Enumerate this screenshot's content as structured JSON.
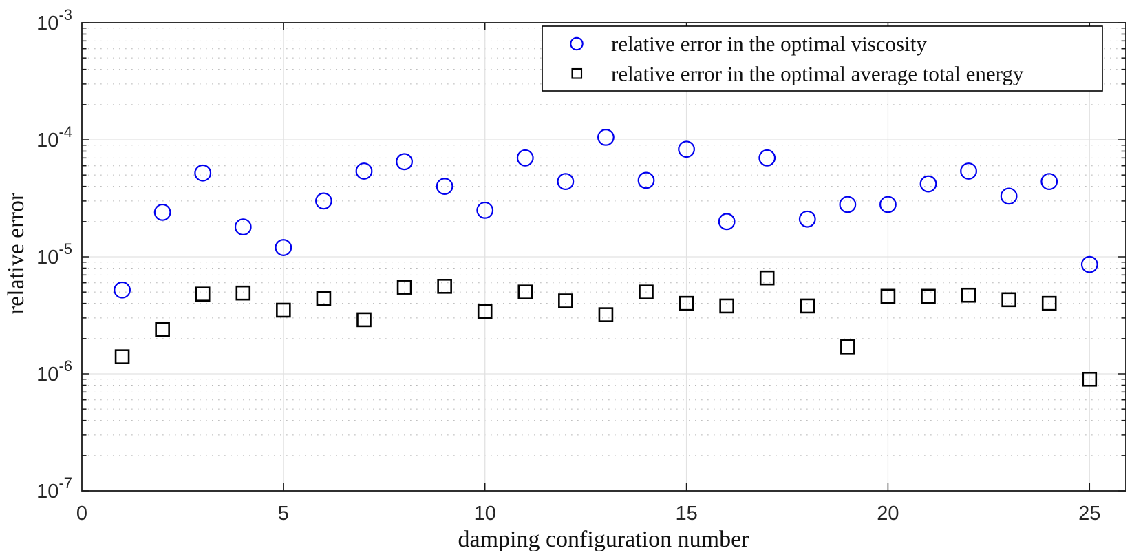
{
  "chart_data": {
    "type": "scatter",
    "title": "",
    "xlabel": "damping configuration number",
    "ylabel": "relative error",
    "yscale": "log",
    "xlim": [
      0,
      25.9
    ],
    "ylim": [
      1e-07,
      0.001
    ],
    "grid": "major solid on, log minor dotted on",
    "legend_position": "top-right inside, boxed",
    "x": [
      1,
      2,
      3,
      4,
      5,
      6,
      7,
      8,
      9,
      10,
      11,
      12,
      13,
      14,
      15,
      16,
      17,
      18,
      19,
      20,
      21,
      22,
      23,
      24,
      25
    ],
    "x_ticks": [
      0,
      5,
      10,
      15,
      20,
      25
    ],
    "x_tick_labels": [
      "0",
      "5",
      "10",
      "15",
      "20",
      "25"
    ],
    "y_ticks": [
      {
        "base": "10",
        "exp": "-3"
      },
      {
        "base": "10",
        "exp": "-4"
      },
      {
        "base": "10",
        "exp": "-5"
      },
      {
        "base": "10",
        "exp": "-6"
      },
      {
        "base": "10",
        "exp": "-7"
      }
    ],
    "series": [
      {
        "name": "relative error in the optimal viscosity",
        "marker": "circle",
        "color": "#0000ee",
        "values": [
          5.2e-06,
          2.4e-05,
          5.2e-05,
          1.8e-05,
          1.2e-05,
          3e-05,
          5.4e-05,
          6.5e-05,
          4e-05,
          2.5e-05,
          7e-05,
          4.4e-05,
          0.000105,
          4.5e-05,
          8.3e-05,
          2e-05,
          7e-05,
          2.1e-05,
          2.8e-05,
          2.8e-05,
          4.2e-05,
          5.4e-05,
          3.3e-05,
          4.4e-05,
          8.6e-06
        ]
      },
      {
        "name": "relative error in the optimal average total energy",
        "marker": "square",
        "color": "#000000",
        "values": [
          1.4e-06,
          2.4e-06,
          4.8e-06,
          4.9e-06,
          3.5e-06,
          4.4e-06,
          2.9e-06,
          5.5e-06,
          5.6e-06,
          3.4e-06,
          5e-06,
          4.2e-06,
          3.2e-06,
          5e-06,
          4e-06,
          3.8e-06,
          6.6e-06,
          3.8e-06,
          1.7e-06,
          4.6e-06,
          4.6e-06,
          4.7e-06,
          4.3e-06,
          4e-06,
          9e-07
        ]
      }
    ]
  },
  "colors": {
    "background": "#ffffff",
    "axes": "#1a1a1a",
    "major_grid": "#e2e2e2",
    "minor_grid": "#b8b8b8",
    "viscosity_marker": "#0000ee",
    "energy_marker": "#000000"
  }
}
